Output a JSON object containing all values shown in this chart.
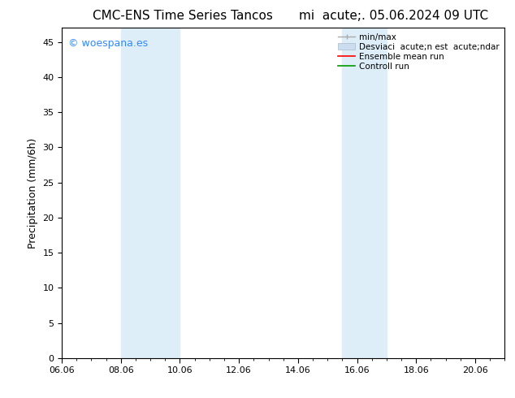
{
  "title_left": "CMC-ENS Time Series Tancos",
  "title_right": "mi  acute;. 05.06.2024 09 UTC",
  "ylabel": "Precipitation (mm/6h)",
  "xlabel": "",
  "xlim_start": 6.0,
  "xlim_end": 21.0,
  "ylim_bottom": 0,
  "ylim_top": 47,
  "yticks": [
    0,
    5,
    10,
    15,
    20,
    25,
    30,
    35,
    40,
    45
  ],
  "xtick_labels": [
    "06.06",
    "08.06",
    "10.06",
    "12.06",
    "14.06",
    "16.06",
    "18.06",
    "20.06"
  ],
  "xtick_positions": [
    6.0,
    8.0,
    10.0,
    12.0,
    14.0,
    16.0,
    18.0,
    20.0
  ],
  "shaded_bands": [
    {
      "x_start": 8.0,
      "x_end": 10.0
    },
    {
      "x_start": 15.5,
      "x_end": 17.0
    }
  ],
  "shaded_color": "#ddeef8",
  "background_color": "#ffffff",
  "watermark_text": "© woespana.es",
  "watermark_color": "#3388ff",
  "legend_minmax_color": "#aaaaaa",
  "legend_std_color": "#ccddf0",
  "legend_mean_color": "#ff0000",
  "legend_ctrl_color": "#009900",
  "font_size_title": 11,
  "font_size_axis": 9,
  "font_size_ticks": 8,
  "font_size_legend": 7.5,
  "font_size_watermark": 9
}
